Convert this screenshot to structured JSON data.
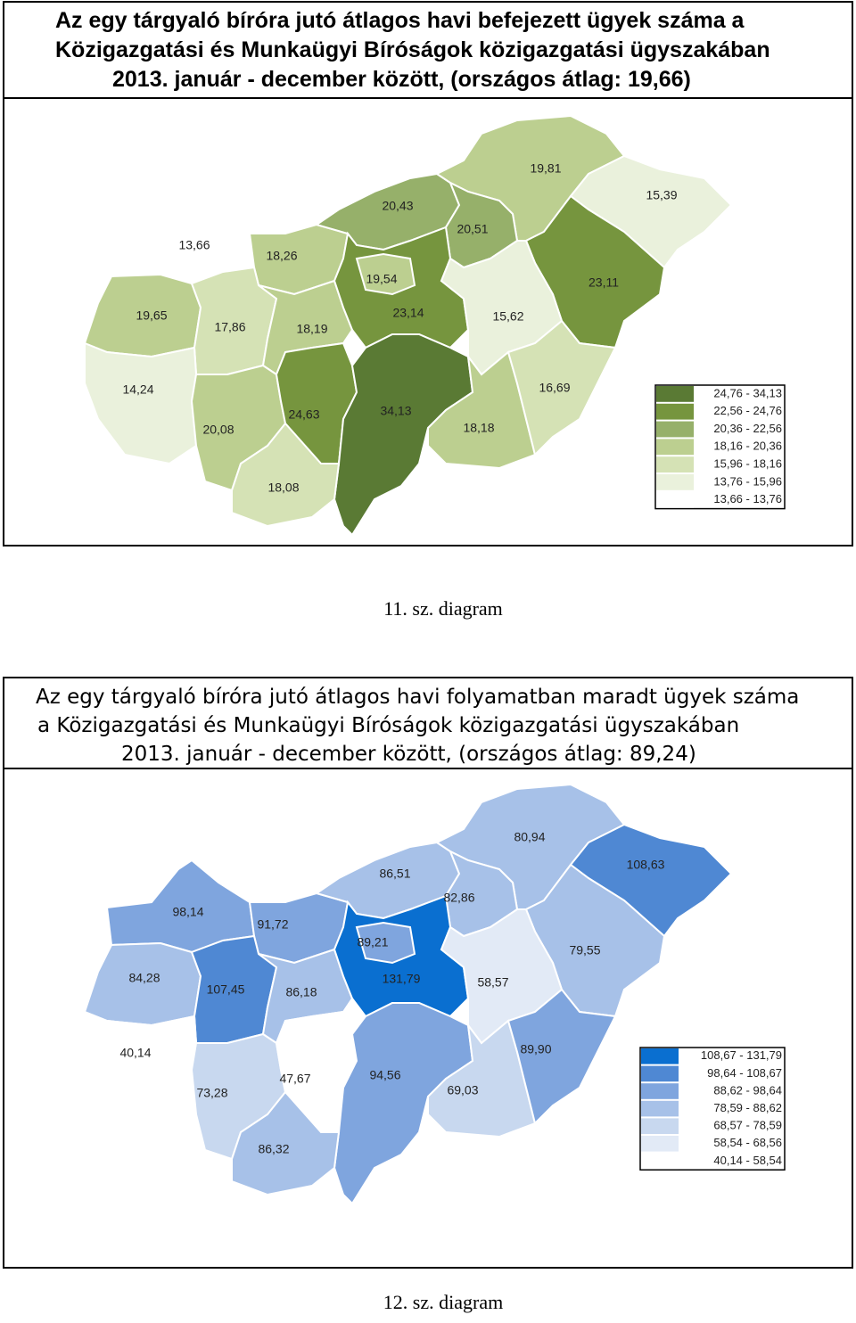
{
  "maps": [
    {
      "title": [
        "Az egy tárgyaló bíróra jutó átlagos havi befejezett ügyek száma a",
        "Közigazgatási és Munkaügyi Bíróságok közigazgatási ügyszakában",
        "2013. január - december között, (országos átlag: 19,66)"
      ],
      "regions": [
        {
          "label": "13,66",
          "color": "#ffffff"
        },
        {
          "label": "18,26",
          "color": "#bccf90"
        },
        {
          "label": "20,43",
          "color": "#96b06a"
        },
        {
          "label": "19,81",
          "color": "#bccf90"
        },
        {
          "label": "15,39",
          "color": "#eaf1dc"
        },
        {
          "label": "20,51",
          "color": "#96b06a"
        },
        {
          "label": "19,54",
          "color": "#bccf90"
        },
        {
          "label": "23,11",
          "color": "#76953e"
        },
        {
          "label": "19,65",
          "color": "#bccf90"
        },
        {
          "label": "17,86",
          "color": "#d5e2b5"
        },
        {
          "label": "18,19",
          "color": "#bccf90"
        },
        {
          "label": "23,14",
          "color": "#76953e"
        },
        {
          "label": "15,62",
          "color": "#eaf1dc"
        },
        {
          "label": "14,24",
          "color": "#eaf1dc"
        },
        {
          "label": "20,08",
          "color": "#bccf90"
        },
        {
          "label": "24,63",
          "color": "#76953e"
        },
        {
          "label": "34,13",
          "color": "#5a7a34"
        },
        {
          "label": "18,18",
          "color": "#bccf90"
        },
        {
          "label": "16,69",
          "color": "#d5e2b5"
        },
        {
          "label": "18,08",
          "color": "#d5e2b5"
        }
      ],
      "legend": [
        {
          "label": "24,76 - 34,13",
          "color": "#5a7a34"
        },
        {
          "label": "22,56 - 24,76",
          "color": "#76953e"
        },
        {
          "label": "20,36 - 22,56",
          "color": "#96b06a"
        },
        {
          "label": "18,16 - 20,36",
          "color": "#bccf90"
        },
        {
          "label": "15,96 - 18,16",
          "color": "#d5e2b5"
        },
        {
          "label": "13,76 - 15,96",
          "color": "#eaf1dc"
        },
        {
          "label": "13,66 - 13,76",
          "color": "#ffffff"
        }
      ],
      "caption": "11. sz. diagram"
    },
    {
      "title": [
        "Az egy tárgyaló bíróra jutó átlagos havi folyamatban maradt ügyek száma",
        "a Közigazgatási és Munkaügyi Bíróságok közigazgatási ügyszakában",
        "2013. január - december között, (országos átlag: 89,24)"
      ],
      "regions": [
        {
          "label": "98,14",
          "color": "#7fa5de"
        },
        {
          "label": "91,72",
          "color": "#7fa5de"
        },
        {
          "label": "86,51",
          "color": "#a7c1e8"
        },
        {
          "label": "80,94",
          "color": "#a7c1e8"
        },
        {
          "label": "108,63",
          "color": "#4f88d3"
        },
        {
          "label": "82,86",
          "color": "#a7c1e8"
        },
        {
          "label": "89,21",
          "color": "#7fa5de"
        },
        {
          "label": "79,55",
          "color": "#a7c1e8"
        },
        {
          "label": "84,28",
          "color": "#a7c1e8"
        },
        {
          "label": "107,45",
          "color": "#4f88d3"
        },
        {
          "label": "86,18",
          "color": "#a7c1e8"
        },
        {
          "label": "131,79",
          "color": "#0a6fd0"
        },
        {
          "label": "58,57",
          "color": "#e2eaf6"
        },
        {
          "label": "40,14",
          "color": "#ffffff"
        },
        {
          "label": "73,28",
          "color": "#c8d8ef"
        },
        {
          "label": "47,67",
          "color": "#ffffff"
        },
        {
          "label": "94,56",
          "color": "#7fa5de"
        },
        {
          "label": "69,03",
          "color": "#c8d8ef"
        },
        {
          "label": "89,90",
          "color": "#7fa5de"
        },
        {
          "label": "86,32",
          "color": "#a7c1e8"
        }
      ],
      "legend": [
        {
          "label": "108,67 - 131,79",
          "color": "#0a6fd0"
        },
        {
          "label": "98,64 - 108,67",
          "color": "#4f88d3"
        },
        {
          "label": "88,62 - 98,64",
          "color": "#7fa5de"
        },
        {
          "label": "78,59 - 88,62",
          "color": "#a7c1e8"
        },
        {
          "label": "68,57 - 78,59",
          "color": "#c8d8ef"
        },
        {
          "label": "58,54 - 68,56",
          "color": "#e2eaf6"
        },
        {
          "label": "40,14 - 58,54",
          "color": "#ffffff"
        }
      ],
      "caption": "12. sz. diagram"
    }
  ]
}
